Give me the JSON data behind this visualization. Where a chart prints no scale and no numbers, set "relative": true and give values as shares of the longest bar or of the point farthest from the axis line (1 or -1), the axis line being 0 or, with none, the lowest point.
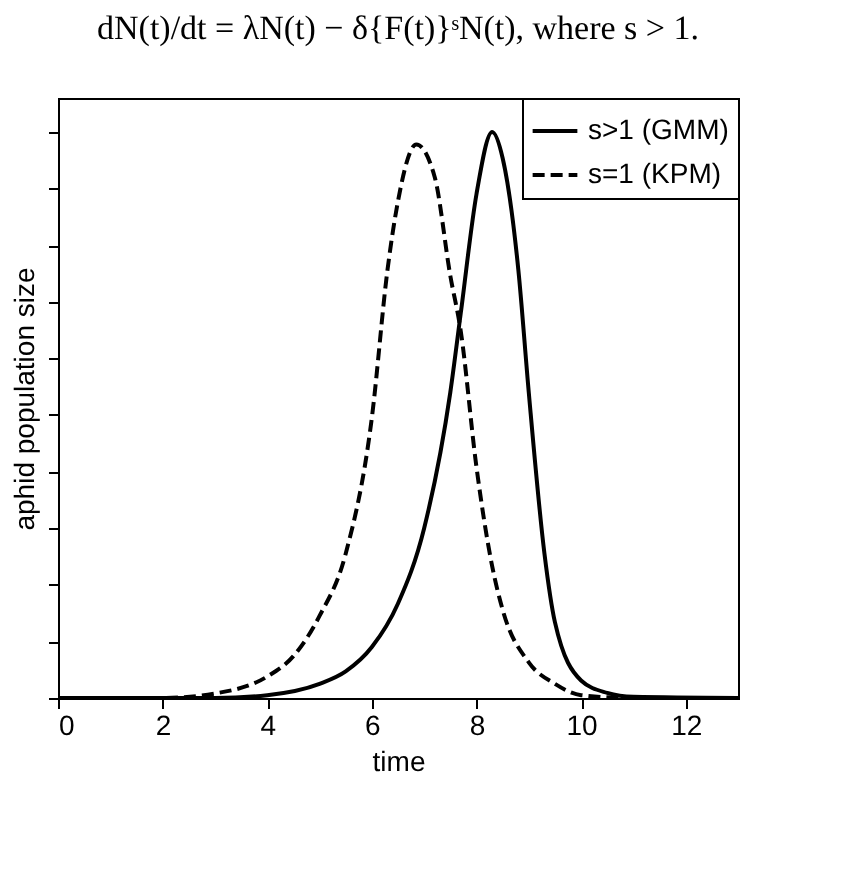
{
  "chart_data": {
    "type": "line",
    "title": "dN(t)/dt = λN(t) − δ{F(t)}ˢN(t),    where s > 1.",
    "xlabel": "time",
    "ylabel": "aphid population size",
    "relative": true,
    "xlim": [
      0,
      13
    ],
    "xticks": [
      0,
      2,
      4,
      6,
      8,
      10,
      12
    ],
    "grid": false,
    "legend": "top right",
    "marker": "none",
    "series": [
      {
        "name": "s>1 (GMM)",
        "color": "#000000",
        "line_style": "solid",
        "x": [
          0,
          3,
          4,
          5,
          5.5,
          6,
          6.5,
          7,
          7.5,
          7.7,
          8,
          8.3,
          8.5,
          8.8,
          9,
          9.3,
          9.5,
          10,
          10.5,
          11,
          13
        ],
        "values": [
          0,
          0,
          0.005,
          0.025,
          0.047,
          0.09,
          0.167,
          0.3,
          0.54,
          0.68,
          0.89,
          1,
          0.954,
          0.757,
          0.54,
          0.255,
          0.134,
          0.031,
          0.009,
          0.002,
          0
        ]
      },
      {
        "name": "s=1 (KPM)",
        "color": "#000000",
        "line_style": "dashed",
        "x": [
          0,
          2,
          3,
          4,
          4.5,
          5,
          5.5,
          6,
          6.3,
          6.5,
          6.85,
          7.2,
          7.5,
          7.7,
          8,
          8.3,
          8.5,
          9,
          9.5,
          10,
          11,
          13
        ],
        "values": [
          0,
          0,
          0.008,
          0.038,
          0.074,
          0.145,
          0.255,
          0.495,
          0.757,
          0.878,
          0.978,
          0.921,
          0.746,
          0.648,
          0.408,
          0.233,
          0.156,
          0.063,
          0.025,
          0.005,
          0,
          0
        ]
      }
    ]
  }
}
